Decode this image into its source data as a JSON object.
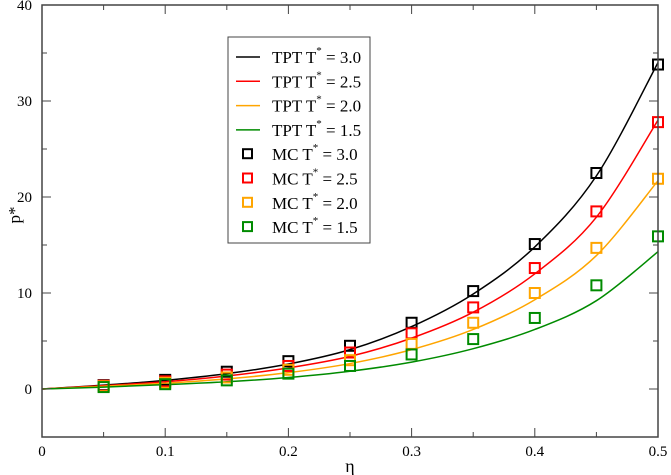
{
  "chart_data": {
    "type": "line",
    "xlabel": "η",
    "ylabel": "p*",
    "xlim": [
      0,
      0.5
    ],
    "ylim": [
      -5,
      40
    ],
    "xticks": [
      "0",
      "0.1",
      "0.2",
      "0.3",
      "0.4",
      "0.5"
    ],
    "yticks": [
      "0",
      "10",
      "20",
      "30",
      "40"
    ],
    "grid": false,
    "legend_placement": "top-center-left",
    "x": [
      0,
      0.05,
      0.1,
      0.15,
      0.2,
      0.25,
      0.3,
      0.35,
      0.4,
      0.45,
      0.5
    ],
    "lines": [
      {
        "name": "TPT T* = 3.0",
        "color": "#000000",
        "values": [
          0,
          0.4,
          0.9,
          1.6,
          2.6,
          4.1,
          6.5,
          9.9,
          14.8,
          22.2,
          34.0
        ]
      },
      {
        "name": "TPT T* = 2.5",
        "color": "#ff0000",
        "values": [
          0,
          0.35,
          0.75,
          1.35,
          2.2,
          3.4,
          5.3,
          8.0,
          12.0,
          17.9,
          28.0
        ]
      },
      {
        "name": "TPT T* = 2.0",
        "color": "#ffa500",
        "values": [
          0,
          0.28,
          0.6,
          1.05,
          1.7,
          2.65,
          4.1,
          6.2,
          9.3,
          13.9,
          21.7
        ]
      },
      {
        "name": "TPT T* = 1.5",
        "color": "#008b00",
        "values": [
          0,
          0.2,
          0.45,
          0.75,
          1.2,
          1.85,
          2.8,
          4.2,
          6.2,
          9.2,
          14.3
        ]
      }
    ],
    "scatter_x": [
      0.05,
      0.1,
      0.15,
      0.2,
      0.25,
      0.3,
      0.35,
      0.4,
      0.45,
      0.5
    ],
    "scatter": [
      {
        "name": "MC T* = 3.0",
        "color": "#000000",
        "values": [
          0.4,
          0.95,
          1.8,
          2.9,
          4.5,
          6.9,
          10.2,
          15.1,
          22.5,
          33.8
        ]
      },
      {
        "name": "MC T* = 2.5",
        "color": "#ff0000",
        "values": [
          0.35,
          0.8,
          1.5,
          2.4,
          3.8,
          5.8,
          8.5,
          12.6,
          18.5,
          27.8
        ]
      },
      {
        "name": "MC T* = 2.0",
        "color": "#ffa500",
        "values": [
          0.28,
          0.65,
          1.2,
          2.0,
          3.0,
          4.7,
          6.9,
          10.0,
          14.7,
          21.9
        ]
      },
      {
        "name": "MC T* = 1.5",
        "color": "#008b00",
        "values": [
          0.2,
          0.5,
          0.9,
          1.6,
          2.4,
          3.6,
          5.2,
          7.4,
          10.8,
          15.9
        ]
      }
    ]
  }
}
